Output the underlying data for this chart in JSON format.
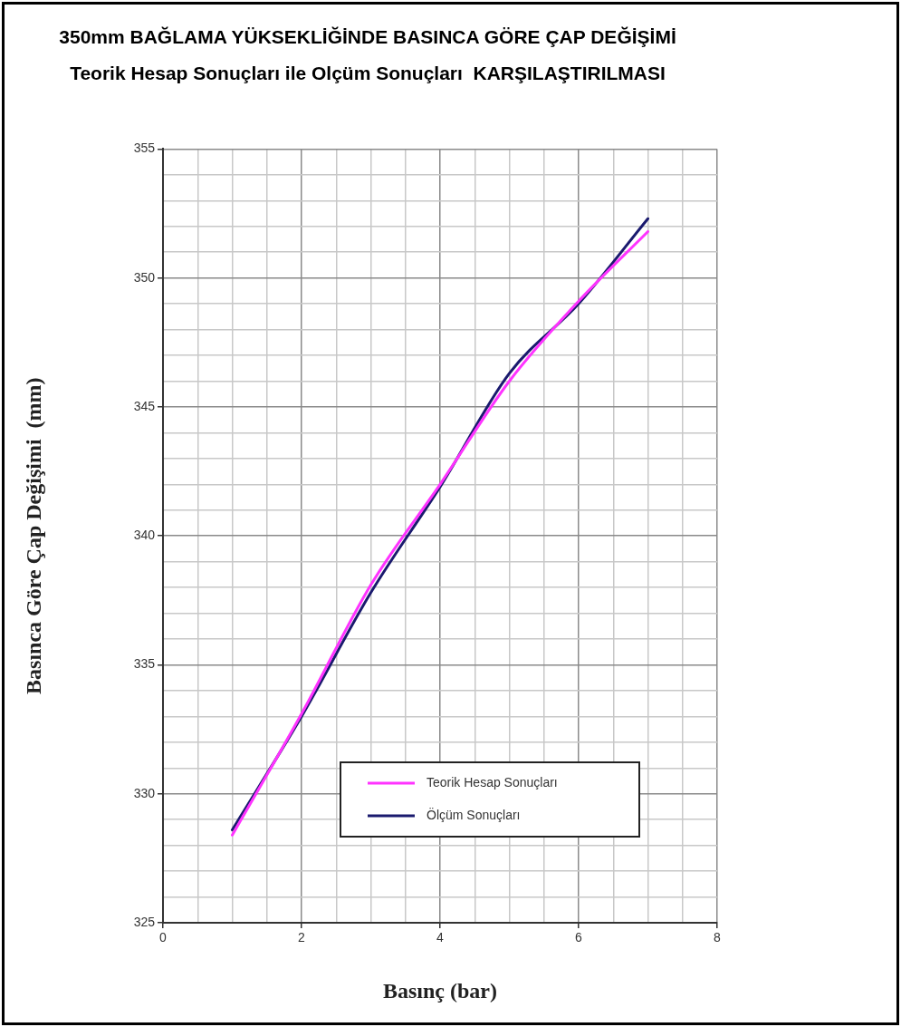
{
  "chart_data": {
    "type": "line",
    "title": "350mm BAĞLAMA YÜKSEKLİĞİNDE BASINCA GÖRE ÇAP DEĞİŞİMİ",
    "subtitle": "Teorik Hesap Sonuçları ile Olçüm Sonuçları  KARŞILAŞTIRILMASI",
    "xlabel": "Basınç (bar)",
    "ylabel": "Basınca Göre Çap Değişimi  (mm)",
    "x": [
      1,
      2,
      3,
      4,
      5,
      6,
      7
    ],
    "series": [
      {
        "name": "Teorik Hesap Sonuçları",
        "color": "#ff33ff",
        "values": [
          328.4,
          333.1,
          338.1,
          342.0,
          346.0,
          349.1,
          351.8
        ]
      },
      {
        "name": "Ölçüm Sonuçları",
        "color": "#1a1a6e",
        "values": [
          328.6,
          333.0,
          337.8,
          341.9,
          346.3,
          349.0,
          352.3
        ]
      }
    ],
    "xlim": [
      0,
      8
    ],
    "xticks": [
      0,
      {
        "value": 0.5,
        "label": null
      },
      {
        "value": 1,
        "label": null
      },
      {
        "value": 1.5,
        "label": null
      },
      2,
      {
        "value": 2.5,
        "label": null
      },
      {
        "value": 3,
        "label": null
      },
      {
        "value": 3.5,
        "label": null
      },
      4,
      {
        "value": 4.5,
        "label": null
      },
      {
        "value": 5,
        "label": null
      },
      {
        "value": 5.5,
        "label": null
      },
      6,
      {
        "value": 6.5,
        "label": null
      },
      {
        "value": 7,
        "label": null
      },
      {
        "value": 7.5,
        "label": null
      },
      8
    ],
    "ylim": [
      325,
      355
    ],
    "yticks": [
      325,
      {
        "value": 326,
        "label": null
      },
      {
        "value": 327,
        "label": null
      },
      {
        "value": 328,
        "label": null
      },
      {
        "value": 329,
        "label": null
      },
      330,
      {
        "value": 331,
        "label": null
      },
      {
        "value": 332,
        "label": null
      },
      {
        "value": 333,
        "label": null
      },
      {
        "value": 334,
        "label": null
      },
      335,
      {
        "value": 336,
        "label": null
      },
      {
        "value": 337,
        "label": null
      },
      {
        "value": 338,
        "label": null
      },
      {
        "value": 339,
        "label": null
      },
      340,
      {
        "value": 341,
        "label": null
      },
      {
        "value": 342,
        "label": null
      },
      {
        "value": 343,
        "label": null
      },
      {
        "value": 344,
        "label": null
      },
      345,
      {
        "value": 346,
        "label": null
      },
      {
        "value": 347,
        "label": null
      },
      {
        "value": 348,
        "label": null
      },
      {
        "value": 349,
        "label": null
      },
      350,
      {
        "value": 351,
        "label": null
      },
      {
        "value": 352,
        "label": null
      },
      {
        "value": 353,
        "label": null
      },
      {
        "value": 354,
        "label": null
      },
      355
    ],
    "grid": true,
    "legend": "bottom",
    "marker": "none",
    "line_style": "solid"
  }
}
